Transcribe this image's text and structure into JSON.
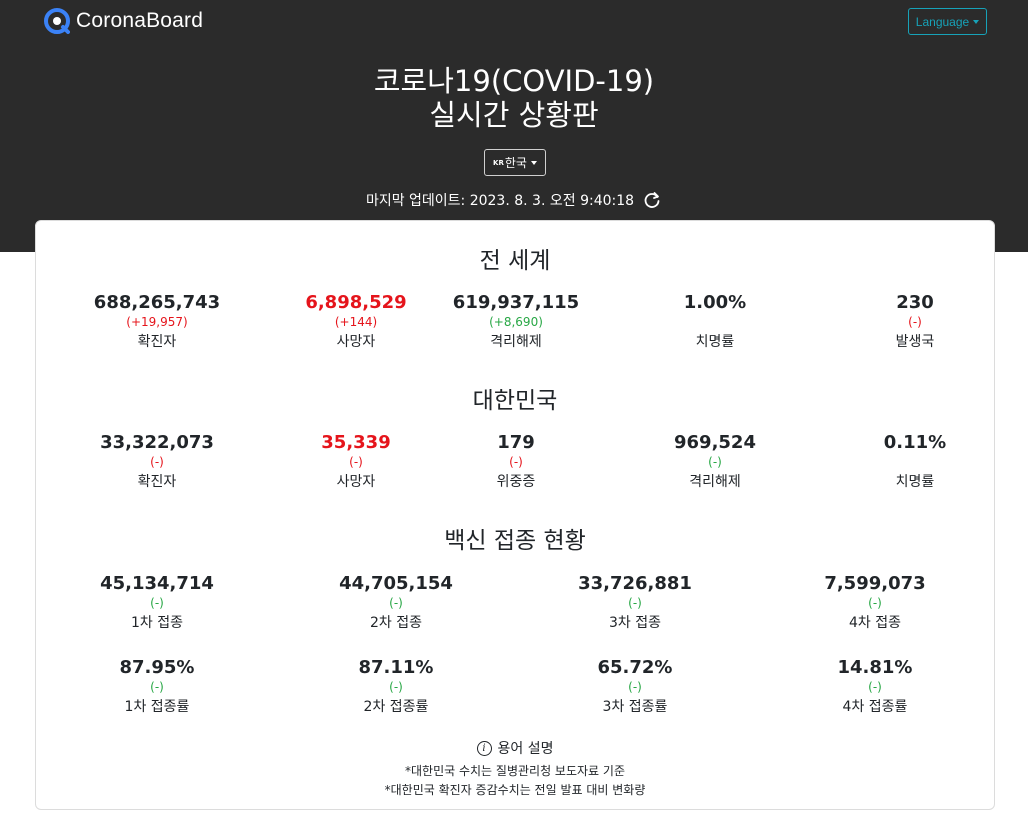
{
  "header": {
    "brand": "CoronaBoard",
    "language_label": "Language",
    "title_line1": "코로나19(COVID-19)",
    "title_line2": "실시간 상황판",
    "country_code": "KR",
    "country_label": "한국",
    "last_update": "마지막 업데이트: 2023. 8. 3. 오전 9:40:18"
  },
  "world": {
    "title": "전 세계",
    "stats": [
      {
        "value": "688,265,743",
        "change": "(+19,957)",
        "label": "확진자"
      },
      {
        "value": "6,898,529",
        "change": "(+144)",
        "label": "사망자"
      },
      {
        "value": "619,937,115",
        "change": "(+8,690)",
        "label": "격리해제"
      },
      {
        "value": "1.00%",
        "change": "",
        "label": "치명률"
      },
      {
        "value": "230",
        "change": "(-)",
        "label": "발생국"
      }
    ]
  },
  "korea": {
    "title": "대한민국",
    "stats": [
      {
        "value": "33,322,073",
        "change": "(-)",
        "label": "확진자"
      },
      {
        "value": "35,339",
        "change": "(-)",
        "label": "사망자"
      },
      {
        "value": "179",
        "change": "(-)",
        "label": "위중증"
      },
      {
        "value": "969,524",
        "change": "(-)",
        "label": "격리해제"
      },
      {
        "value": "0.11%",
        "change": "",
        "label": "치명률"
      }
    ]
  },
  "vaccine": {
    "title": "백신 접종 현황",
    "counts": [
      {
        "value": "45,134,714",
        "change": "(-)",
        "label": "1차 접종"
      },
      {
        "value": "44,705,154",
        "change": "(-)",
        "label": "2차 접종"
      },
      {
        "value": "33,726,881",
        "change": "(-)",
        "label": "3차 접종"
      },
      {
        "value": "7,599,073",
        "change": "(-)",
        "label": "4차 접종"
      }
    ],
    "rates": [
      {
        "value": "87.95%",
        "change": "(-)",
        "label": "1차 접종률"
      },
      {
        "value": "87.11%",
        "change": "(-)",
        "label": "2차 접종률"
      },
      {
        "value": "65.72%",
        "change": "(-)",
        "label": "3차 접종률"
      },
      {
        "value": "14.81%",
        "change": "(-)",
        "label": "4차 접종률"
      }
    ]
  },
  "footer": {
    "glossary_icon": "i",
    "glossary_label": "용어 설명",
    "note1": "*대한민국 수치는 질병관리청 보도자료 기준",
    "note2": "*대한민국 확진자 증감수치는 전일 발표 대비 변화량"
  },
  "colors": {
    "hero_bg": "#2b2b2b",
    "red": "#e5141b",
    "green": "#28a745",
    "accent": "#17a2b8"
  }
}
